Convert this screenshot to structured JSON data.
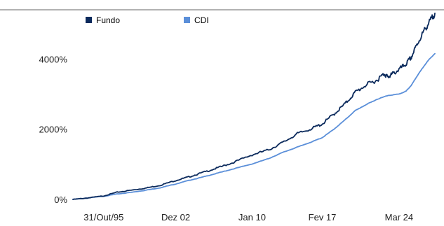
{
  "chart_data": {
    "type": "line",
    "title": "",
    "xlabel": "",
    "ylabel": "",
    "ylim": [
      0,
      5400
    ],
    "yticks": [
      {
        "value": 0,
        "label": "0%"
      },
      {
        "value": 2000,
        "label": "2000%"
      },
      {
        "value": 4000,
        "label": "4000%"
      }
    ],
    "xticks": [
      {
        "label": "31/Out/95",
        "pos": 0.085
      },
      {
        "label": "Dez 02",
        "pos": 0.284
      },
      {
        "label": "Jan 10",
        "pos": 0.495
      },
      {
        "label": "Fev 17",
        "pos": 0.689
      },
      {
        "label": "Mar 24",
        "pos": 0.901
      }
    ],
    "legend_position": "top-left",
    "grid": false,
    "series": [
      {
        "name": "Fundo",
        "color": "#0b2a5c",
        "points": [
          [
            0.0,
            0
          ],
          [
            0.04,
            40
          ],
          [
            0.085,
            100
          ],
          [
            0.12,
            200
          ],
          [
            0.16,
            260
          ],
          [
            0.2,
            320
          ],
          [
            0.24,
            400
          ],
          [
            0.284,
            540
          ],
          [
            0.32,
            640
          ],
          [
            0.36,
            770
          ],
          [
            0.4,
            900
          ],
          [
            0.44,
            1040
          ],
          [
            0.495,
            1270
          ],
          [
            0.54,
            1410
          ],
          [
            0.58,
            1620
          ],
          [
            0.62,
            1870
          ],
          [
            0.66,
            2020
          ],
          [
            0.689,
            2150
          ],
          [
            0.72,
            2420
          ],
          [
            0.75,
            2700
          ],
          [
            0.78,
            3050
          ],
          [
            0.81,
            3260
          ],
          [
            0.84,
            3400
          ],
          [
            0.86,
            3580
          ],
          [
            0.87,
            3480
          ],
          [
            0.88,
            3550
          ],
          [
            0.901,
            3700
          ],
          [
            0.92,
            3850
          ],
          [
            0.935,
            4050
          ],
          [
            0.95,
            4400
          ],
          [
            0.97,
            4800
          ],
          [
            0.985,
            5050
          ],
          [
            1.0,
            5300
          ]
        ]
      },
      {
        "name": "CDI",
        "color": "#5b8fd9",
        "points": [
          [
            0.0,
            0
          ],
          [
            0.04,
            40
          ],
          [
            0.085,
            90
          ],
          [
            0.12,
            150
          ],
          [
            0.16,
            200
          ],
          [
            0.2,
            260
          ],
          [
            0.24,
            330
          ],
          [
            0.284,
            440
          ],
          [
            0.32,
            540
          ],
          [
            0.36,
            640
          ],
          [
            0.4,
            750
          ],
          [
            0.44,
            860
          ],
          [
            0.495,
            1010
          ],
          [
            0.54,
            1160
          ],
          [
            0.58,
            1340
          ],
          [
            0.62,
            1490
          ],
          [
            0.66,
            1640
          ],
          [
            0.689,
            1760
          ],
          [
            0.72,
            1990
          ],
          [
            0.75,
            2250
          ],
          [
            0.78,
            2530
          ],
          [
            0.81,
            2700
          ],
          [
            0.84,
            2850
          ],
          [
            0.87,
            2960
          ],
          [
            0.901,
            3000
          ],
          [
            0.92,
            3080
          ],
          [
            0.935,
            3250
          ],
          [
            0.95,
            3500
          ],
          [
            0.97,
            3800
          ],
          [
            0.985,
            4000
          ],
          [
            1.0,
            4150
          ]
        ]
      }
    ]
  }
}
